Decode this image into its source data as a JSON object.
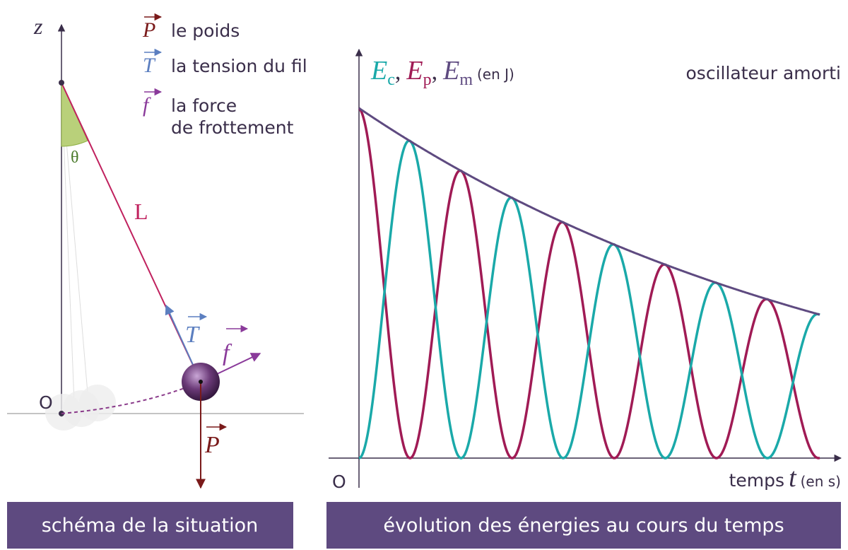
{
  "left_panel": {
    "axis_label": "z",
    "origin": "O",
    "angle": "θ",
    "length": "L",
    "vectors": {
      "tension": "T",
      "friction": "f",
      "weight": "P"
    },
    "legend": [
      {
        "symbol": "P",
        "lines": [
          "le poids"
        ]
      },
      {
        "symbol": "T",
        "lines": [
          "la tension du fil"
        ]
      },
      {
        "symbol": "f",
        "lines": [
          "la force",
          "de frottement"
        ]
      }
    ],
    "caption": "schéma de la situation"
  },
  "right_panel": {
    "title": "oscillateur amorti",
    "y_axis": {
      "symbol": "E",
      "subscripts": [
        "c",
        "p",
        "m"
      ],
      "separator": ",",
      "unit": "(en J)"
    },
    "x_axis": {
      "word": "temps",
      "symbol": "t",
      "unit": "(en s)"
    },
    "origin": "O",
    "caption": "évolution des énergies au cours du temps"
  }
}
